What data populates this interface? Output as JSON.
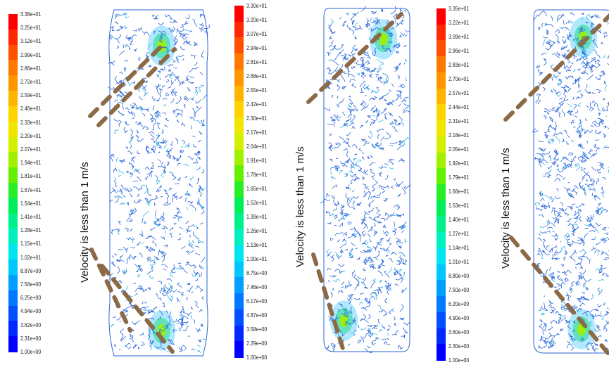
{
  "colormap": [
    "#0000ff",
    "#0028ff",
    "#0050ff",
    "#0078ff",
    "#00a0ff",
    "#00c8ff",
    "#00e6f0",
    "#00f0c0",
    "#00f08c",
    "#00ee5a",
    "#28ee28",
    "#64f000",
    "#a0f000",
    "#d2f000",
    "#f0e600",
    "#ffd200",
    "#ffb400",
    "#ff9600",
    "#ff7800",
    "#ff5000",
    "#ff2800",
    "#ff0000"
  ],
  "annotation_color": "#8b6a45",
  "contour_color": "#2a66d8",
  "panels": [
    {
      "name": "panel-1",
      "legend_labels": [
        "3.38e+01",
        "3.25e+01",
        "3.12e+01",
        "2.99e+01",
        "2.86e+01",
        "2.72e+01",
        "2.59e+01",
        "2.46e+01",
        "2.33e+01",
        "2.20e+01",
        "2.07e+01",
        "1.94e+01",
        "1.81e+01",
        "1.67e+01",
        "1.54e+01",
        "1.41e+01",
        "1.28e+01",
        "1.15e+01",
        "1.02e+01",
        "8.87e+00",
        "7.56e+00",
        "6.25e+00",
        "4.94e+00",
        "3.62e+00",
        "2.31e+00",
        "1.00e+00"
      ],
      "annotation": "Velocity is less than 1 m/s"
    },
    {
      "name": "panel-2",
      "legend_labels": [
        "3.30e+01",
        "3.20e+01",
        "3.07e+01",
        "2.94e+01",
        "2.81e+01",
        "2.68e+01",
        "2.55e+01",
        "2.42e+01",
        "2.30e+01",
        "2.17e+01",
        "2.04e+01",
        "1.91e+01",
        "1.78e+01",
        "1.65e+01",
        "1.52e+01",
        "1.39e+01",
        "1.26e+01",
        "1.13e+01",
        "1.00e+01",
        "8.75e+00",
        "7.46e+00",
        "6.17e+00",
        "4.87e+00",
        "3.58e+00",
        "2.29e+00",
        "1.00e+00"
      ],
      "annotation": "Velocity is less than 1 m/s"
    },
    {
      "name": "panel-3",
      "legend_labels": [
        "3.35e+01",
        "3.22e+01",
        "3.09e+01",
        "2.96e+01",
        "2.83e+01",
        "2.70e+01",
        "2.57e+01",
        "2.44e+01",
        "2.31e+01",
        "2.18e+01",
        "2.05e+01",
        "1.92e+01",
        "1.79e+01",
        "1.66e+01",
        "1.53e+01",
        "1.40e+01",
        "1.27e+01",
        "1.14e+01",
        "1.01e+01",
        "8.80e+00",
        "7.50e+00",
        "6.20e+00",
        "4.90e+00",
        "3.60e+00",
        "2.30e+00",
        "1.00e+00"
      ],
      "annotation": "Velocity is less than 1 m/s"
    }
  ]
}
